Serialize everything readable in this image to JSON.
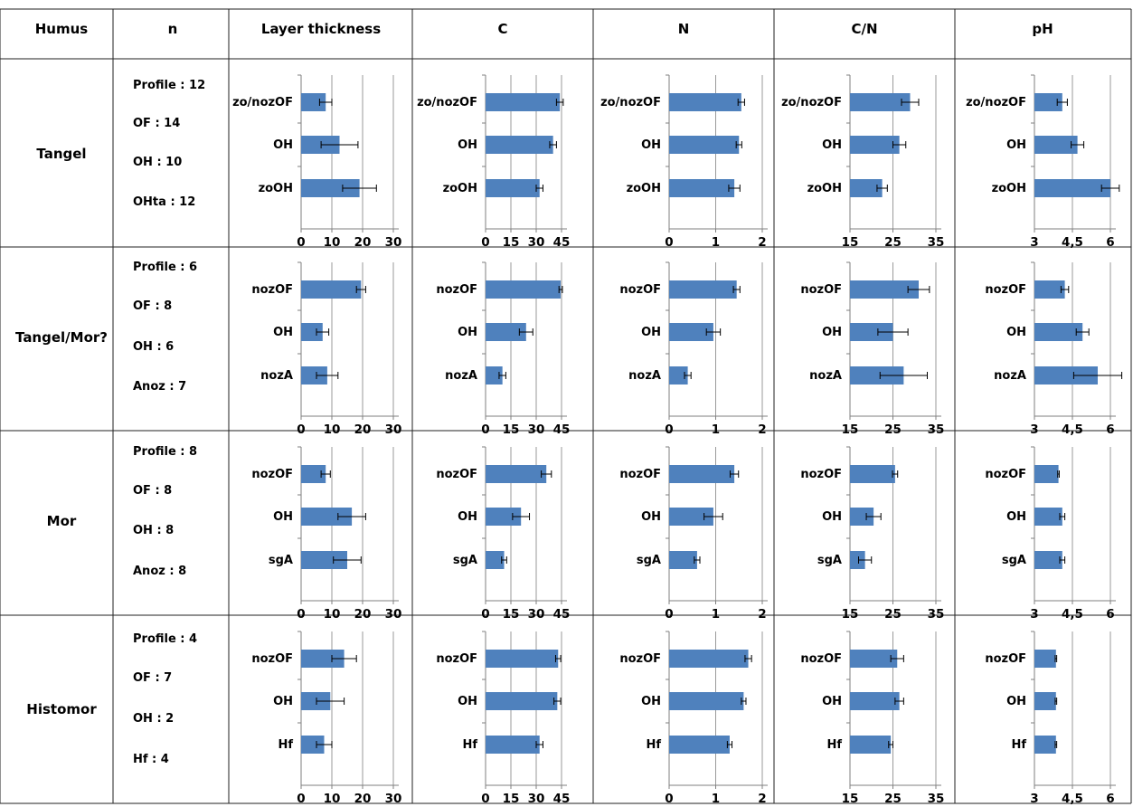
{
  "header": {
    "humus": "Humus",
    "n": "n",
    "panels": [
      "Layer thickness",
      "C",
      "N",
      "C/N",
      "pH"
    ]
  },
  "rows": [
    {
      "humus": "Tangel",
      "n": [
        "Profile : 12",
        "OF : 14",
        "OH : 10",
        "OHta : 12"
      ]
    },
    {
      "humus": "Tangel/Mor?",
      "n": [
        "Profile : 6",
        "OF : 8",
        "OH : 6",
        "Anoz : 7"
      ]
    },
    {
      "humus": "Mor",
      "n": [
        "Profile : 8",
        "OF : 8",
        "OH : 8",
        "Anoz : 8"
      ]
    },
    {
      "humus": "Histomor",
      "n": [
        "Profile : 4",
        "OF : 7",
        "OH : 2",
        "Hf : 4"
      ]
    }
  ],
  "chart_data": {
    "type": "bar",
    "orientation": "horizontal",
    "bar_color": "#4F81BD",
    "grid": true,
    "axes": {
      "Layer thickness": {
        "min": 0,
        "max": 30,
        "ticks": [
          "0",
          "10",
          "20",
          "30"
        ]
      },
      "C": {
        "min": 0,
        "max": 45,
        "ticks": [
          "0",
          "15",
          "30",
          "45"
        ]
      },
      "N": {
        "min": 0,
        "max": 2,
        "ticks": [
          "0",
          "1",
          "2"
        ]
      },
      "C/N": {
        "min": 15,
        "max": 35,
        "ticks": [
          "15",
          "25",
          "35"
        ]
      },
      "pH": {
        "min": 3,
        "max": 6,
        "ticks": [
          "3",
          "4,5",
          "6"
        ]
      }
    },
    "cells": [
      {
        "humus": "Tangel",
        "categories": [
          "zo/nozOF",
          "OH",
          "zoOH"
        ],
        "panels": {
          "Layer thickness": {
            "values": [
              8,
              12.5,
              19
            ],
            "errors": [
              2,
              6,
              5.5
            ]
          },
          "C": {
            "values": [
              44,
              40,
              32
            ],
            "errors": [
              2,
              2,
              2
            ]
          },
          "N": {
            "values": [
              1.55,
              1.5,
              1.4
            ],
            "errors": [
              0.07,
              0.06,
              0.12
            ]
          },
          "C/N": {
            "values": [
              29,
              26.5,
              22.5
            ],
            "errors": [
              2,
              1.5,
              1.2
            ]
          },
          "pH": {
            "values": [
              4.1,
              4.7,
              6.0
            ],
            "errors": [
              0.2,
              0.25,
              0.35
            ]
          }
        }
      },
      {
        "humus": "Tangel/Mor?",
        "categories": [
          "nozOF",
          "OH",
          "nozA"
        ],
        "panels": {
          "Layer thickness": {
            "values": [
              19.5,
              7,
              8.5
            ],
            "errors": [
              1.5,
              2,
              3.5
            ]
          },
          "C": {
            "values": [
              44.5,
              24,
              10
            ],
            "errors": [
              1,
              4,
              2
            ]
          },
          "N": {
            "values": [
              1.45,
              0.95,
              0.4
            ],
            "errors": [
              0.07,
              0.15,
              0.07
            ]
          },
          "C/N": {
            "values": [
              31,
              25,
              27.5
            ],
            "errors": [
              2.5,
              3.5,
              5.5
            ]
          },
          "pH": {
            "values": [
              4.2,
              4.9,
              5.5
            ],
            "errors": [
              0.15,
              0.25,
              0.95
            ]
          }
        }
      },
      {
        "humus": "Mor",
        "categories": [
          "nozOF",
          "OH",
          "sgA"
        ],
        "panels": {
          "Layer thickness": {
            "values": [
              8,
              16.5,
              15
            ],
            "errors": [
              1.5,
              4.5,
              4.5
            ]
          },
          "C": {
            "values": [
              36,
              21,
              11
            ],
            "errors": [
              3,
              5,
              1.5
            ]
          },
          "N": {
            "values": [
              1.4,
              0.95,
              0.6
            ],
            "errors": [
              0.09,
              0.2,
              0.06
            ]
          },
          "C/N": {
            "values": [
              25.5,
              20.5,
              18.5
            ],
            "errors": [
              0.6,
              1.7,
              1.5
            ]
          },
          "pH": {
            "values": [
              3.95,
              4.1,
              4.1
            ],
            "errors": [
              0.03,
              0.1,
              0.1
            ]
          }
        }
      },
      {
        "humus": "Histomor",
        "categories": [
          "nozOF",
          "OH",
          "Hf"
        ],
        "panels": {
          "Layer thickness": {
            "values": [
              14,
              9.5,
              7.5
            ],
            "errors": [
              4,
              4.5,
              2.5
            ]
          },
          "C": {
            "values": [
              43,
              42.5,
              32
            ],
            "errors": [
              1.5,
              2,
              2
            ]
          },
          "N": {
            "values": [
              1.7,
              1.6,
              1.3
            ],
            "errors": [
              0.07,
              0.05,
              0.05
            ]
          },
          "C/N": {
            "values": [
              26,
              26.5,
              24.5
            ],
            "errors": [
              1.5,
              1,
              0.5
            ]
          },
          "pH": {
            "values": [
              3.85,
              3.85,
              3.85
            ],
            "errors": [
              0.03,
              0.03,
              0.03
            ]
          }
        }
      }
    ]
  }
}
